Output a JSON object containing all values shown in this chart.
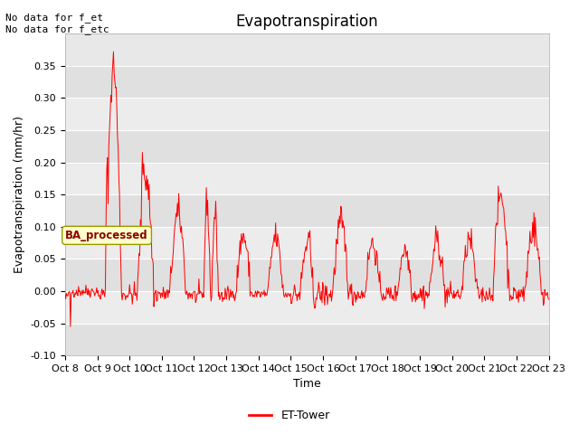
{
  "title": "Evapotranspiration",
  "ylabel": "Evapotranspiration (mm/hr)",
  "xlabel": "Time",
  "ylim": [
    -0.1,
    0.4
  ],
  "yticks": [
    -0.1,
    -0.05,
    0.0,
    0.05,
    0.1,
    0.15,
    0.2,
    0.25,
    0.3,
    0.35
  ],
  "annotation_text": "No data for f_et\nNo data for f_etc",
  "box_label": "BA_processed",
  "legend_label": "ET-Tower",
  "line_color": "red",
  "plot_bg": "#ebebeb",
  "band_light": "#e8e8e8",
  "band_dark": "#d8d8d8",
  "x_tick_labels": [
    "Oct 8",
    "Oct 9",
    "Oct 10",
    "Oct 11",
    "Oct 12",
    "Oct 13",
    "Oct 14",
    "Oct 15",
    "Oct 16",
    "Oct 17",
    "Oct 18",
    "Oct 19",
    "Oct 20",
    "Oct 21",
    "Oct 22",
    "Oct 23"
  ],
  "title_fontsize": 12,
  "label_fontsize": 9,
  "tick_fontsize": 8,
  "n_days": 15,
  "n_per_day": 48
}
